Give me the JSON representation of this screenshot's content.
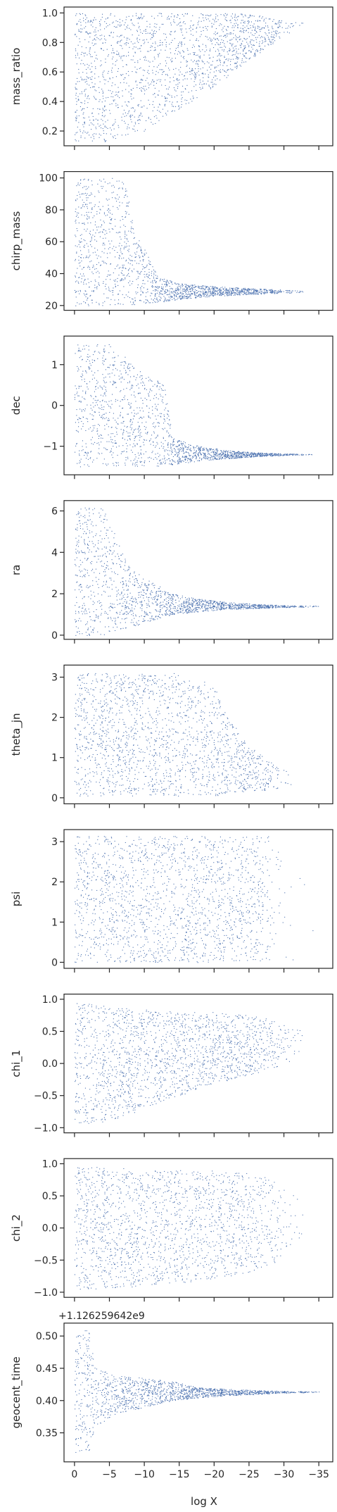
{
  "figure": {
    "xlabel": "log X",
    "point_color": "#4c72b0",
    "frame_color": "#262626"
  },
  "chart_data": [
    {
      "type": "scatter",
      "ylabel": "mass_ratio",
      "xlim": [
        1.5,
        -37
      ],
      "ylim": [
        0.1,
        1.04
      ],
      "yticks": [
        "0.2",
        "0.4",
        "0.6",
        "0.8",
        "1.0"
      ],
      "ytick_values": [
        0.2,
        0.4,
        0.6,
        0.8,
        1.0
      ],
      "xticks": [],
      "envelope": {
        "x": [
          0,
          -5,
          -10,
          -15,
          -20,
          -25,
          -28,
          -30,
          -33
        ],
        "low": [
          0.12,
          0.13,
          0.2,
          0.35,
          0.5,
          0.68,
          0.78,
          0.85,
          0.92
        ],
        "high": [
          1.0,
          1.0,
          1.0,
          1.0,
          1.0,
          1.0,
          0.97,
          0.95,
          0.94
        ],
        "density": [
          1.0,
          1.0,
          0.95,
          0.9,
          0.9,
          0.85,
          0.5,
          0.15,
          0.02
        ]
      }
    },
    {
      "type": "scatter",
      "ylabel": "chirp_mass",
      "xlim": [
        1.5,
        -37
      ],
      "ylim": [
        17,
        104
      ],
      "yticks": [
        "20",
        "40",
        "60",
        "80",
        "100"
      ],
      "ytick_values": [
        20,
        40,
        60,
        80,
        100
      ],
      "xticks": [],
      "envelope": {
        "x": [
          0,
          -3,
          -7,
          -9,
          -12,
          -15,
          -20,
          -25,
          -30,
          -33
        ],
        "low": [
          20,
          20,
          20,
          21,
          22,
          24,
          26,
          27,
          28,
          28
        ],
        "high": [
          100,
          100,
          100,
          65,
          38,
          34,
          32,
          31,
          30,
          29
        ],
        "density": [
          1.0,
          1.0,
          0.9,
          0.9,
          0.85,
          0.8,
          0.8,
          0.7,
          0.25,
          0.03
        ]
      }
    },
    {
      "type": "scatter",
      "ylabel": "dec",
      "xlim": [
        1.5,
        -37
      ],
      "ylim": [
        -1.7,
        1.7
      ],
      "yticks": [
        "−1",
        "0",
        "1"
      ],
      "ytick_values": [
        -1,
        0,
        1
      ],
      "xticks": [],
      "envelope": {
        "x": [
          0,
          -5,
          -10,
          -13,
          -14,
          -18,
          -22,
          -26,
          -30,
          -34
        ],
        "low": [
          -1.5,
          -1.5,
          -1.5,
          -1.5,
          -1.45,
          -1.35,
          -1.3,
          -1.25,
          -1.22,
          -1.2
        ],
        "high": [
          1.5,
          1.5,
          0.8,
          0.5,
          -0.8,
          -1.0,
          -1.1,
          -1.15,
          -1.18,
          -1.19
        ],
        "density": [
          1.0,
          1.0,
          0.95,
          0.9,
          0.9,
          0.85,
          0.8,
          0.75,
          0.35,
          0.05
        ]
      }
    },
    {
      "type": "scatter",
      "ylabel": "ra",
      "xlim": [
        1.5,
        -37
      ],
      "ylim": [
        -0.2,
        6.5
      ],
      "yticks": [
        "0",
        "2",
        "4",
        "6"
      ],
      "ytick_values": [
        0,
        2,
        4,
        6
      ],
      "xticks": [],
      "envelope": {
        "x": [
          0,
          -4,
          -8,
          -11,
          -14,
          -18,
          -22,
          -26,
          -30,
          -35
        ],
        "low": [
          0.0,
          0.0,
          0.4,
          0.7,
          1.0,
          1.15,
          1.25,
          1.3,
          1.35,
          1.38
        ],
        "high": [
          6.2,
          6.2,
          3.2,
          2.6,
          2.0,
          1.75,
          1.6,
          1.5,
          1.45,
          1.42
        ],
        "density": [
          1.0,
          1.0,
          0.9,
          0.9,
          0.85,
          0.8,
          0.75,
          0.7,
          0.35,
          0.05
        ]
      }
    },
    {
      "type": "scatter",
      "ylabel": "theta_jn",
      "xlim": [
        1.5,
        -37
      ],
      "ylim": [
        -0.15,
        3.3
      ],
      "yticks": [
        "0",
        "1",
        "2",
        "3"
      ],
      "ytick_values": [
        0,
        1,
        2,
        3
      ],
      "xticks": [],
      "envelope": {
        "x": [
          0,
          -5,
          -10,
          -15,
          -20,
          -22,
          -25,
          -28,
          -31
        ],
        "low": [
          0.05,
          0.05,
          0.05,
          0.05,
          0.05,
          0.1,
          0.15,
          0.2,
          0.3
        ],
        "high": [
          3.1,
          3.1,
          3.1,
          3.1,
          2.8,
          2.0,
          1.3,
          0.9,
          0.6
        ],
        "density": [
          1.0,
          1.0,
          0.95,
          0.9,
          0.85,
          0.8,
          0.7,
          0.3,
          0.03
        ]
      }
    },
    {
      "type": "scatter",
      "ylabel": "psi",
      "xlim": [
        1.5,
        -37
      ],
      "ylim": [
        -0.15,
        3.3
      ],
      "yticks": [
        "0",
        "1",
        "2",
        "3"
      ],
      "ytick_values": [
        0,
        1,
        2,
        3
      ],
      "xticks": [],
      "envelope": {
        "x": [
          0,
          -5,
          -10,
          -15,
          -20,
          -25,
          -27,
          -29,
          -31,
          -35
        ],
        "low": [
          0.0,
          0.0,
          0.0,
          0.0,
          0.0,
          0.0,
          0.0,
          0.0,
          0.0,
          0.0
        ],
        "high": [
          3.14,
          3.14,
          3.14,
          3.14,
          3.14,
          3.14,
          3.14,
          3.14,
          3.14,
          3.14
        ],
        "density": [
          1.0,
          1.0,
          1.0,
          1.0,
          1.0,
          1.0,
          0.9,
          0.15,
          0.04,
          0.01
        ]
      }
    },
    {
      "type": "scatter",
      "ylabel": "chi_1",
      "xlim": [
        1.5,
        -37
      ],
      "ylim": [
        -1.08,
        1.08
      ],
      "yticks": [
        "−1.0",
        "−0.5",
        "0.0",
        "0.5",
        "1.0"
      ],
      "ytick_values": [
        -1.0,
        -0.5,
        0.0,
        0.5,
        1.0
      ],
      "xticks": [],
      "envelope": {
        "x": [
          0,
          -5,
          -10,
          -15,
          -20,
          -25,
          -28,
          -30,
          -33
        ],
        "low": [
          -0.95,
          -0.9,
          -0.7,
          -0.5,
          -0.3,
          -0.2,
          -0.1,
          0.0,
          0.1
        ],
        "high": [
          0.95,
          0.9,
          0.85,
          0.8,
          0.8,
          0.75,
          0.7,
          0.6,
          0.5
        ],
        "density": [
          1.0,
          1.0,
          0.95,
          0.9,
          0.9,
          0.85,
          0.5,
          0.15,
          0.02
        ]
      }
    },
    {
      "type": "scatter",
      "ylabel": "chi_2",
      "xlim": [
        1.5,
        -37
      ],
      "ylim": [
        -1.08,
        1.08
      ],
      "yticks": [
        "−1.0",
        "−0.5",
        "0.0",
        "0.5",
        "1.0"
      ],
      "ytick_values": [
        -1.0,
        -0.5,
        0.0,
        0.5,
        1.0
      ],
      "xticks": [],
      "envelope": {
        "x": [
          0,
          -5,
          -10,
          -15,
          -20,
          -25,
          -28,
          -30,
          -33
        ],
        "low": [
          -0.95,
          -0.95,
          -0.9,
          -0.85,
          -0.8,
          -0.7,
          -0.6,
          -0.4,
          -0.2
        ],
        "high": [
          0.95,
          0.95,
          0.9,
          0.9,
          0.9,
          0.85,
          0.8,
          0.6,
          0.4
        ],
        "density": [
          1.0,
          1.0,
          0.95,
          0.9,
          0.9,
          0.85,
          0.5,
          0.15,
          0.02
        ]
      }
    },
    {
      "type": "scatter",
      "ylabel": "geocent_time",
      "offset_text": "+1.126259642e9",
      "xlim": [
        1.5,
        -37
      ],
      "ylim": [
        0.305,
        0.52
      ],
      "yticks": [
        "0.35",
        "0.40",
        "0.45",
        "0.50"
      ],
      "ytick_values": [
        0.35,
        0.4,
        0.45,
        0.5
      ],
      "xticks": [
        "0",
        "−5",
        "−10",
        "−15",
        "−20",
        "−25",
        "−30",
        "−35"
      ],
      "xtick_values": [
        0,
        -5,
        -10,
        -15,
        -20,
        -25,
        -30,
        -35
      ],
      "envelope": {
        "x": [
          0,
          -2,
          -3,
          -6,
          -10,
          -14,
          -18,
          -22,
          -26,
          -30,
          -35
        ],
        "low": [
          0.32,
          0.32,
          0.36,
          0.38,
          0.39,
          0.4,
          0.405,
          0.408,
          0.41,
          0.412,
          0.413
        ],
        "high": [
          0.51,
          0.51,
          0.45,
          0.44,
          0.435,
          0.43,
          0.42,
          0.418,
          0.416,
          0.415,
          0.414
        ],
        "density": [
          1.0,
          1.0,
          0.95,
          0.9,
          0.9,
          0.85,
          0.8,
          0.7,
          0.6,
          0.3,
          0.04
        ]
      }
    }
  ]
}
